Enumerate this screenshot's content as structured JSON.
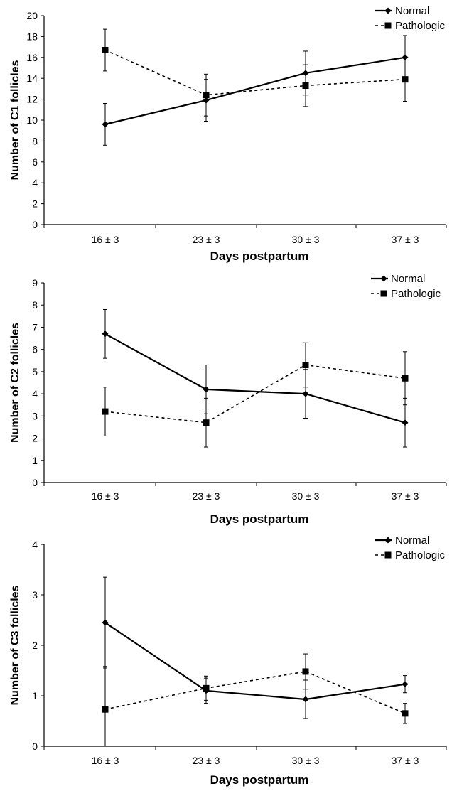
{
  "figure": {
    "background": "#ffffff",
    "line_color": "#000000"
  },
  "chart_data": [
    {
      "type": "line",
      "title": "",
      "xlabel": "Days postpartum",
      "ylabel": "Number of  C1 follicles",
      "categories": [
        "16 ± 3",
        "23 ± 3",
        "30 ± 3",
        "37 ± 3"
      ],
      "ylim": [
        0,
        20
      ],
      "yticks": [
        0,
        2,
        4,
        6,
        8,
        10,
        12,
        14,
        16,
        18,
        20
      ],
      "grid": false,
      "legend": "top-right",
      "series": [
        {
          "name": "Normal",
          "style": "solid",
          "marker": "diamond",
          "values": [
            9.6,
            11.9,
            14.5,
            16.0
          ],
          "errors": [
            2.0,
            2.0,
            2.1,
            2.1
          ]
        },
        {
          "name": "Pathologic",
          "style": "dashed",
          "marker": "square",
          "values": [
            16.7,
            12.4,
            13.3,
            13.9
          ],
          "errors": [
            2.0,
            2.0,
            2.0,
            2.1
          ]
        }
      ]
    },
    {
      "type": "line",
      "title": "",
      "xlabel": "Days postpartum",
      "ylabel": "Number of C2 follicles",
      "categories": [
        "16 ± 3",
        "23 ± 3",
        "30 ± 3",
        "37 ± 3"
      ],
      "ylim": [
        0,
        9
      ],
      "yticks": [
        0,
        1,
        2,
        3,
        4,
        5,
        6,
        7,
        8,
        9
      ],
      "grid": false,
      "legend": "top-right",
      "series": [
        {
          "name": "Normal",
          "style": "solid",
          "marker": "diamond",
          "values": [
            6.7,
            4.2,
            4.0,
            2.7
          ],
          "errors": [
            1.1,
            1.1,
            1.1,
            1.1
          ]
        },
        {
          "name": "Pathologic",
          "style": "dashed",
          "marker": "square",
          "values": [
            3.2,
            2.7,
            5.3,
            4.7
          ],
          "errors": [
            1.1,
            1.1,
            1.0,
            1.2
          ]
        }
      ]
    },
    {
      "type": "line",
      "title": "",
      "xlabel": "Days postpartum",
      "ylabel": "Number of C3 follicles",
      "categories": [
        "16 ± 3",
        "23 ± 3",
        "30 ± 3",
        "37 ± 3"
      ],
      "ylim": [
        0,
        4
      ],
      "yticks": [
        0,
        1,
        2,
        3,
        4
      ],
      "grid": false,
      "legend": "top-right",
      "series": [
        {
          "name": "Normal",
          "style": "solid",
          "marker": "diamond",
          "values": [
            2.45,
            1.1,
            0.93,
            1.23
          ],
          "errors": [
            0.9,
            0.25,
            0.38,
            0.17
          ]
        },
        {
          "name": "Pathologic",
          "style": "dashed",
          "marker": "square",
          "values": [
            0.73,
            1.15,
            1.48,
            0.65
          ],
          "errors": [
            0.85,
            0.24,
            0.35,
            0.2
          ]
        }
      ]
    }
  ]
}
